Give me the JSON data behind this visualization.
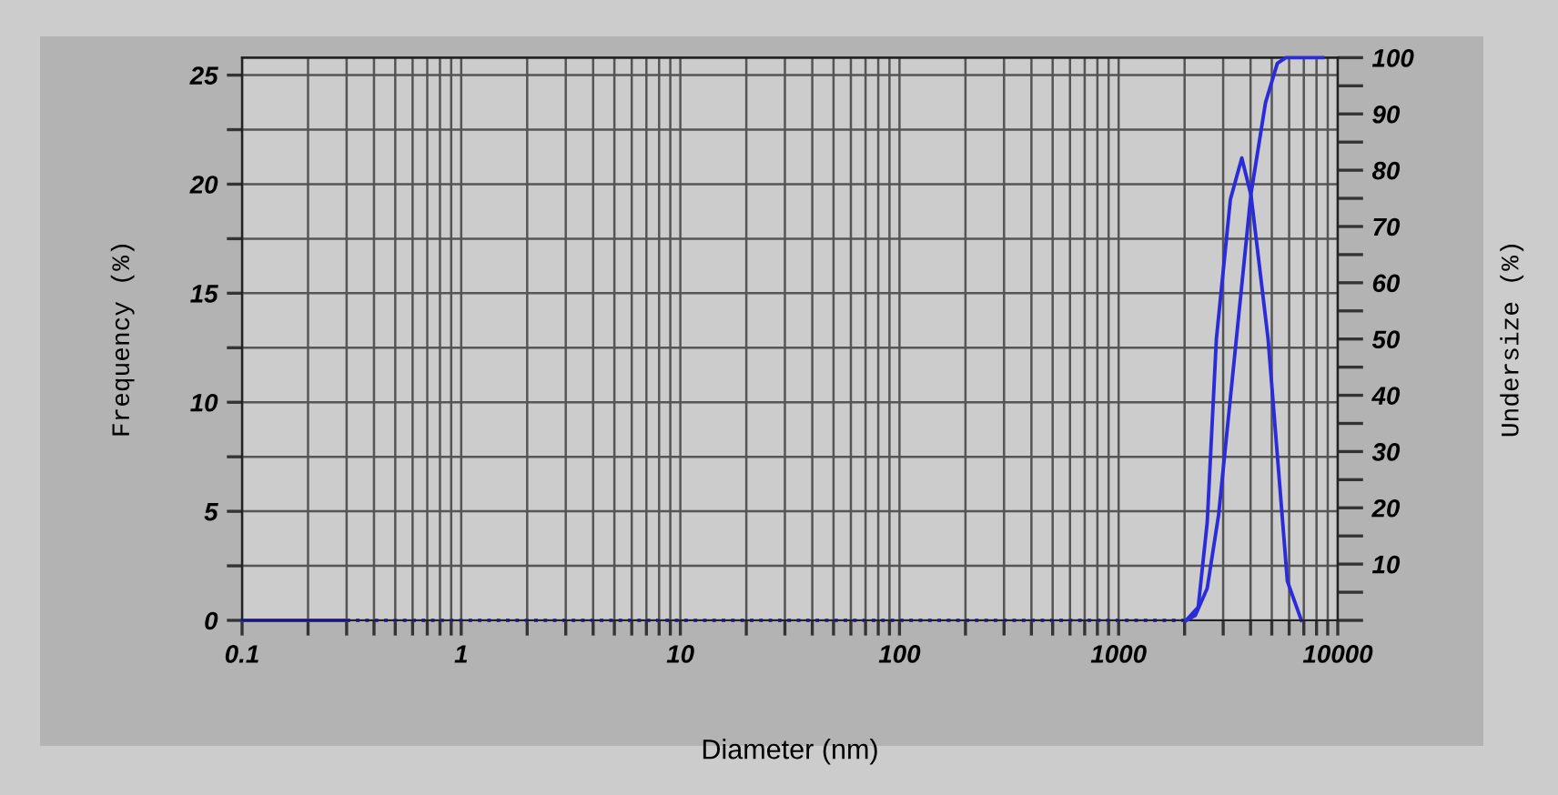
{
  "chart_data": {
    "type": "line",
    "xlabel": "Diameter (nm)",
    "ylabel": "Frequency (%)",
    "y2label": "Undersize (%)",
    "log": "x",
    "grid": true,
    "legend": false,
    "marker": "none",
    "xlim": [
      0.1,
      10000
    ],
    "xticks": [
      0.1,
      {
        "value": 0.2,
        "label": null
      },
      {
        "value": 0.3,
        "label": null
      },
      {
        "value": 0.4,
        "label": null
      },
      {
        "value": 0.5,
        "label": null
      },
      {
        "value": 0.6,
        "label": null
      },
      {
        "value": 0.7,
        "label": null
      },
      {
        "value": 0.8,
        "label": null
      },
      {
        "value": 0.9,
        "label": null
      },
      1,
      {
        "value": 2,
        "label": null
      },
      {
        "value": 3,
        "label": null
      },
      {
        "value": 4,
        "label": null
      },
      {
        "value": 5,
        "label": null
      },
      {
        "value": 6,
        "label": null
      },
      {
        "value": 7,
        "label": null
      },
      {
        "value": 8,
        "label": null
      },
      {
        "value": 9,
        "label": null
      },
      10,
      {
        "value": 20,
        "label": null
      },
      {
        "value": 30,
        "label": null
      },
      {
        "value": 40,
        "label": null
      },
      {
        "value": 50,
        "label": null
      },
      {
        "value": 60,
        "label": null
      },
      {
        "value": 70,
        "label": null
      },
      {
        "value": 80,
        "label": null
      },
      {
        "value": 90,
        "label": null
      },
      100,
      {
        "value": 200,
        "label": null
      },
      {
        "value": 300,
        "label": null
      },
      {
        "value": 400,
        "label": null
      },
      {
        "value": 500,
        "label": null
      },
      {
        "value": 600,
        "label": null
      },
      {
        "value": 700,
        "label": null
      },
      {
        "value": 800,
        "label": null
      },
      {
        "value": 900,
        "label": null
      },
      1000,
      {
        "value": 2000,
        "label": null
      },
      {
        "value": 3000,
        "label": null
      },
      {
        "value": 4000,
        "label": null
      },
      {
        "value": 5000,
        "label": null
      },
      {
        "value": 6000,
        "label": null
      },
      {
        "value": 7000,
        "label": null
      },
      {
        "value": 8000,
        "label": null
      },
      {
        "value": 9000,
        "label": null
      },
      10000
    ],
    "ylim": [
      0,
      25.8
    ],
    "yticks": [
      0,
      {
        "value": 2.5,
        "label": null
      },
      5,
      {
        "value": 7.5,
        "label": null
      },
      10,
      {
        "value": 12.5,
        "label": null
      },
      15,
      {
        "value": 17.5,
        "label": null
      },
      20,
      {
        "value": 22.5,
        "label": null
      },
      25
    ],
    "y2lim": [
      0,
      100
    ],
    "y2ticks": [
      {
        "value": 0,
        "label": null
      },
      {
        "value": 5,
        "label": null
      },
      10,
      {
        "value": 15,
        "label": null
      },
      20,
      {
        "value": 25,
        "label": null
      },
      30,
      {
        "value": 35,
        "label": null
      },
      40,
      {
        "value": 45,
        "label": null
      },
      50,
      {
        "value": 55,
        "label": null
      },
      60,
      {
        "value": 65,
        "label": null
      },
      70,
      {
        "value": 75,
        "label": null
      },
      80,
      {
        "value": 85,
        "label": null
      },
      90,
      {
        "value": 95,
        "label": null
      },
      100
    ],
    "series": [
      {
        "color": "#2b2bd9",
        "line_style": "solid",
        "x": [
          0.1,
          0.3
        ],
        "values": [
          0,
          0
        ]
      },
      {
        "color": "#2b2bd9",
        "line_style": "dotted",
        "x": [
          0.3,
          2000
        ],
        "values": [
          0,
          0
        ]
      },
      {
        "color": "#2b2bd9",
        "line_style": "solid",
        "x": [
          2032,
          2307,
          2537,
          2793,
          3236,
          3648,
          4018,
          4809,
          5888,
          6823
        ],
        "values": [
          0,
          0.6,
          4.5,
          12.9,
          19.3,
          21.2,
          19.5,
          12.9,
          1.8,
          0
        ]
      },
      {
        "color": "#2b2bd9",
        "line_style": "solid",
        "axis": "y2",
        "x": [
          2032,
          2239,
          2537,
          2858,
          3148,
          4018,
          4680,
          5300,
          5800,
          8530
        ],
        "values": [
          0,
          0.9,
          5.7,
          18.7,
          34.9,
          75.8,
          92,
          99,
          100,
          100
        ]
      }
    ]
  }
}
